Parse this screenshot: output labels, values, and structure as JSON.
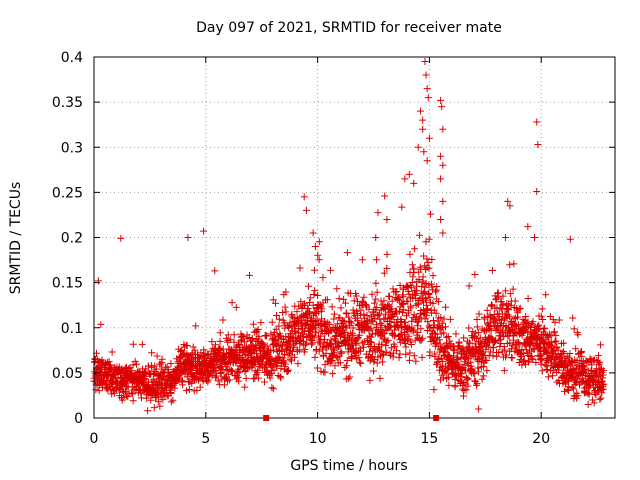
{
  "chart_data": {
    "type": "scatter",
    "title": "Day 097 of 2021, SRMTID for receiver mate",
    "xlabel": "GPS time / hours",
    "ylabel": "SRMTID / TECUs",
    "xlim": [
      0,
      23.3
    ],
    "ylim": [
      0,
      0.4
    ],
    "xticks": [
      0,
      5,
      10,
      15,
      20
    ],
    "yticks": [
      0,
      0.05,
      0.1,
      0.15,
      0.2,
      0.25,
      0.3,
      0.35,
      0.4
    ],
    "ytick_labels": [
      "0",
      "0.05",
      "0.1",
      "0.15",
      "0.2",
      "0.25",
      "0.3",
      "0.35",
      "0.4"
    ],
    "grid": true,
    "marker": "+",
    "color": "#dd0000",
    "series": [
      {
        "name": "SRMTID",
        "generator": {
          "x_start": 0.0,
          "x_end": 22.8,
          "step_hours": 0.0083,
          "baseline": [
            [
              0.0,
              0.05
            ],
            [
              1.0,
              0.045
            ],
            [
              2.0,
              0.04
            ],
            [
              3.0,
              0.035
            ],
            [
              3.5,
              0.04
            ],
            [
              4.0,
              0.06
            ],
            [
              5.0,
              0.055
            ],
            [
              6.0,
              0.065
            ],
            [
              7.0,
              0.07
            ],
            [
              8.0,
              0.07
            ],
            [
              9.0,
              0.09
            ],
            [
              9.5,
              0.11
            ],
            [
              10.0,
              0.1
            ],
            [
              10.5,
              0.085
            ],
            [
              11.0,
              0.085
            ],
            [
              12.0,
              0.1
            ],
            [
              13.0,
              0.1
            ],
            [
              14.0,
              0.11
            ],
            [
              14.5,
              0.13
            ],
            [
              15.0,
              0.12
            ],
            [
              15.5,
              0.09
            ],
            [
              16.0,
              0.06
            ],
            [
              16.5,
              0.06
            ],
            [
              17.0,
              0.07
            ],
            [
              17.5,
              0.08
            ],
            [
              18.0,
              0.11
            ],
            [
              19.0,
              0.09
            ],
            [
              20.0,
              0.085
            ],
            [
              20.5,
              0.07
            ],
            [
              21.0,
              0.055
            ],
            [
              21.5,
              0.05
            ],
            [
              22.0,
              0.045
            ],
            [
              22.8,
              0.04
            ]
          ],
          "spread": [
            [
              0.0,
              0.018
            ],
            [
              4.0,
              0.02
            ],
            [
              9.0,
              0.03
            ],
            [
              12.0,
              0.04
            ],
            [
              14.0,
              0.05
            ],
            [
              15.0,
              0.06
            ],
            [
              16.0,
              0.025
            ],
            [
              18.0,
              0.035
            ],
            [
              21.0,
              0.025
            ],
            [
              22.8,
              0.02
            ]
          ]
        },
        "outliers": [
          {
            "x": 0.2,
            "y": 0.152
          },
          {
            "x": 1.2,
            "y": 0.199
          },
          {
            "x": 4.2,
            "y": 0.2
          },
          {
            "x": 4.9,
            "y": 0.207
          },
          {
            "x": 5.4,
            "y": 0.163
          },
          {
            "x": 9.4,
            "y": 0.245
          },
          {
            "x": 9.5,
            "y": 0.23
          },
          {
            "x": 9.8,
            "y": 0.205
          },
          {
            "x": 9.9,
            "y": 0.19
          },
          {
            "x": 12.6,
            "y": 0.2
          },
          {
            "x": 13.0,
            "y": 0.246
          },
          {
            "x": 13.1,
            "y": 0.22
          },
          {
            "x": 13.9,
            "y": 0.265
          },
          {
            "x": 14.1,
            "y": 0.27
          },
          {
            "x": 14.3,
            "y": 0.26
          },
          {
            "x": 14.5,
            "y": 0.3
          },
          {
            "x": 14.6,
            "y": 0.34
          },
          {
            "x": 14.7,
            "y": 0.33
          },
          {
            "x": 14.8,
            "y": 0.395
          },
          {
            "x": 14.85,
            "y": 0.38
          },
          {
            "x": 14.9,
            "y": 0.365
          },
          {
            "x": 14.95,
            "y": 0.355
          },
          {
            "x": 15.0,
            "y": 0.31
          },
          {
            "x": 14.75,
            "y": 0.295
          },
          {
            "x": 14.9,
            "y": 0.285
          },
          {
            "x": 14.7,
            "y": 0.32
          },
          {
            "x": 15.5,
            "y": 0.352
          },
          {
            "x": 15.55,
            "y": 0.345
          },
          {
            "x": 15.6,
            "y": 0.32
          },
          {
            "x": 15.5,
            "y": 0.29
          },
          {
            "x": 15.6,
            "y": 0.28
          },
          {
            "x": 15.5,
            "y": 0.265
          },
          {
            "x": 15.6,
            "y": 0.24
          },
          {
            "x": 15.5,
            "y": 0.22
          },
          {
            "x": 15.6,
            "y": 0.205
          },
          {
            "x": 18.5,
            "y": 0.24
          },
          {
            "x": 18.6,
            "y": 0.235
          },
          {
            "x": 18.4,
            "y": 0.2
          },
          {
            "x": 19.4,
            "y": 0.212
          },
          {
            "x": 19.8,
            "y": 0.328
          },
          {
            "x": 19.85,
            "y": 0.303
          },
          {
            "x": 19.8,
            "y": 0.251
          },
          {
            "x": 19.7,
            "y": 0.2
          },
          {
            "x": 21.3,
            "y": 0.198
          },
          {
            "x": 17.2,
            "y": 0.01
          },
          {
            "x": 2.4,
            "y": 0.008
          },
          {
            "x": 22.1,
            "y": 0.015
          }
        ]
      }
    ],
    "axis_markers": [
      7.7,
      15.3
    ]
  }
}
